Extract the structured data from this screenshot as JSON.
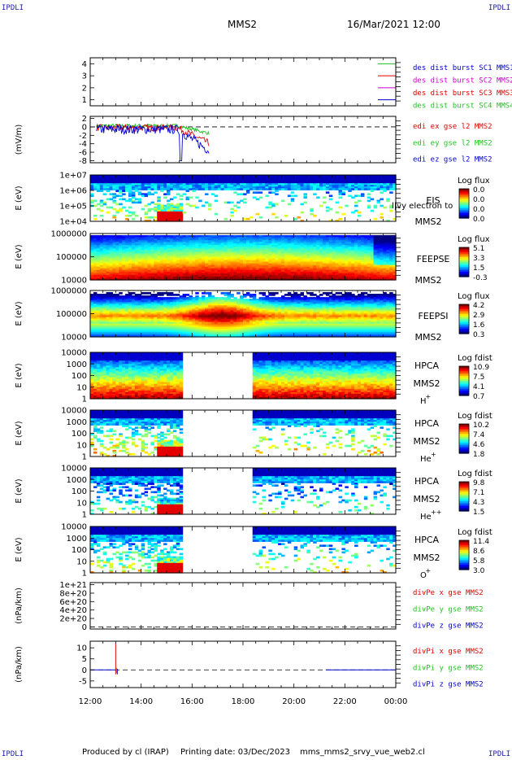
{
  "header": {
    "corner_label": "IPDLI",
    "spacecraft": "MMS2",
    "datetime": "16/Mar/2021 12:00"
  },
  "footer": {
    "produced_by": "Produced by cl (IRAP)",
    "printing_date": "Printing date: 03/Dec/2023",
    "script_name": "mms_mms2_srvy_vue_web2.cl"
  },
  "colors": {
    "red": "#e00000",
    "green": "#22c022",
    "blue": "#0000cc",
    "magenta": "#cc00cc",
    "data_gap": "#ffffff"
  },
  "chart_data": [
    {
      "type": "line",
      "panel": "burst",
      "yticks": [
        "1",
        "2",
        "3",
        "4"
      ],
      "ylim": [
        0.5,
        4.5
      ],
      "legend": [
        {
          "label": "des dist burst SC1 MMS1",
          "color": "#0000cc"
        },
        {
          "label": "des dist burst SC2 MMS2",
          "color": "#cc00cc"
        },
        {
          "label": "des dist burst SC3 MMS3",
          "color": "#e00000"
        },
        {
          "label": "des dist burst SC4 MMS4",
          "color": "#22c022"
        }
      ]
    },
    {
      "type": "line",
      "panel": "edi",
      "ylabel": "(mV/m)",
      "yticks": [
        "2",
        "0",
        "-2",
        "-4",
        "-6",
        "-8"
      ],
      "ylim": [
        -8.5,
        2.5
      ],
      "legend": [
        {
          "label": "edi ex gse l2 MMS2",
          "color": "#e00000"
        },
        {
          "label": "edi ey gse l2 MMS2",
          "color": "#22c022"
        },
        {
          "label": "edi ez gse l2 MMS2",
          "color": "#0000cc"
        }
      ]
    },
    {
      "type": "heatmap",
      "panel": "eis",
      "ylabel": "E (eV)",
      "yticks": [
        "1e+07",
        "1e+06",
        "1e+05",
        "1e+04"
      ],
      "instrument": [
        "EIS",
        "MMS2"
      ],
      "overlay_text": "l|vy electron to",
      "cbar_title": "Log flux",
      "cbar_ticks": [
        "0.0",
        "0.0",
        "0.0",
        "0.0"
      ]
    },
    {
      "type": "heatmap",
      "panel": "feeps_e",
      "ylabel": "E (eV)",
      "yticks": [
        "1000000",
        "100000",
        "10000"
      ],
      "instrument": [
        "FEEPSE",
        "MMS2"
      ],
      "cbar_title": "Log flux",
      "cbar_ticks": [
        "5.1",
        "3.3",
        "1.5",
        "-0.3"
      ]
    },
    {
      "type": "heatmap",
      "panel": "feeps_i",
      "ylabel": "E (eV)",
      "yticks": [
        "1000000",
        "100000",
        "10000"
      ],
      "instrument": [
        "FEEPSI",
        "MMS2"
      ],
      "cbar_title": "Log flux",
      "cbar_ticks": [
        "4.2",
        "2.9",
        "1.6",
        "0.3"
      ]
    },
    {
      "type": "heatmap",
      "panel": "hpca_h",
      "ylabel": "E (eV)",
      "yticks": [
        "10000",
        "1000",
        "100",
        "10",
        "1"
      ],
      "instrument": [
        "HPCA",
        "MMS2"
      ],
      "species": "H",
      "charge": "+",
      "cbar_title": "Log fdist",
      "cbar_ticks": [
        "10.9",
        "7.5",
        "4.1",
        "0.7"
      ],
      "data_gap": [
        "15:35",
        "18:20"
      ]
    },
    {
      "type": "heatmap",
      "panel": "hpca_he",
      "ylabel": "E (eV)",
      "yticks": [
        "10000",
        "1000",
        "100",
        "10",
        "1"
      ],
      "instrument": [
        "HPCA",
        "MMS2"
      ],
      "species": "He",
      "charge": "+",
      "cbar_title": "Log fdist",
      "cbar_ticks": [
        "10.2",
        "7.4",
        "4.6",
        "1.8"
      ],
      "data_gap": [
        "15:35",
        "18:20"
      ]
    },
    {
      "type": "heatmap",
      "panel": "hpca_hepp",
      "ylabel": "E (eV)",
      "yticks": [
        "10000",
        "1000",
        "100",
        "10",
        "1"
      ],
      "instrument": [
        "HPCA",
        "MMS2"
      ],
      "species": "He",
      "charge": "++",
      "cbar_title": "Log fdist",
      "cbar_ticks": [
        "9.8",
        "7.1",
        "4.3",
        "1.5"
      ],
      "data_gap": [
        "15:35",
        "18:20"
      ]
    },
    {
      "type": "heatmap",
      "panel": "hpca_o",
      "ylabel": "E (eV)",
      "yticks": [
        "10000",
        "1000",
        "100",
        "10",
        "1"
      ],
      "instrument": [
        "HPCA",
        "MMS2"
      ],
      "species": "O",
      "charge": "+",
      "cbar_title": "Log fdist",
      "cbar_ticks": [
        "11.4",
        "8.6",
        "5.8",
        "3.0"
      ],
      "data_gap": [
        "15:35",
        "18:20"
      ]
    },
    {
      "type": "line",
      "panel": "divpe",
      "ylabel": "(nPa/km)",
      "yticks": [
        "1e+21",
        "8e+20",
        "6e+20",
        "4e+20",
        "2e+20",
        "0"
      ],
      "ylim": [
        -5e+19,
        1.05e+21
      ],
      "legend": [
        {
          "label": "divPe x gse MMS2",
          "color": "#e00000"
        },
        {
          "label": "divPe y gse MMS2",
          "color": "#22c022"
        },
        {
          "label": "divPe z gse MMS2",
          "color": "#0000cc"
        }
      ]
    },
    {
      "type": "line",
      "panel": "divpi",
      "ylabel": "(nPa/km)",
      "yticks": [
        "10",
        "5",
        "0",
        "-5"
      ],
      "ylim": [
        -8,
        13
      ],
      "legend": [
        {
          "label": "divPi x gse MMS2",
          "color": "#e00000"
        },
        {
          "label": "divPi y gse MMS2",
          "color": "#22c022"
        },
        {
          "label": "divPi z gse MMS2",
          "color": "#0000cc"
        }
      ],
      "spike_time": "13:00",
      "spike_range": [
        -2,
        12
      ]
    }
  ],
  "xaxis": {
    "ticks": [
      "12:00",
      "14:00",
      "16:00",
      "18:00",
      "20:00",
      "22:00",
      "00:00"
    ]
  }
}
